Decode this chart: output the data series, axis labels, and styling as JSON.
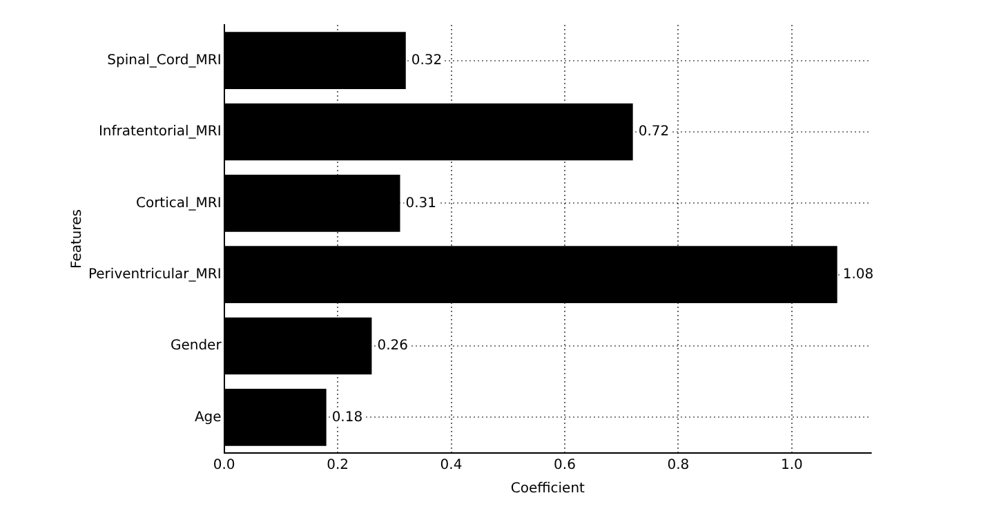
{
  "chart_data": {
    "type": "bar",
    "orientation": "horizontal",
    "xlabel": "Coefficient",
    "ylabel": "Features",
    "categories": [
      "Spinal_Cord_MRI",
      "Infratentorial_MRI",
      "Cortical_MRI",
      "Periventricular_MRI",
      "Gender",
      "Age"
    ],
    "values": [
      0.32,
      0.72,
      0.31,
      1.08,
      0.26,
      0.18
    ],
    "color": "#000000",
    "xlim": [
      0,
      1.14
    ],
    "xticks": [
      {
        "value": 0,
        "label": "0.0"
      },
      0.2,
      0.4,
      0.6,
      0.8,
      {
        "value": 1,
        "label": "1.0"
      }
    ],
    "grid": true,
    "data_labels": true
  }
}
